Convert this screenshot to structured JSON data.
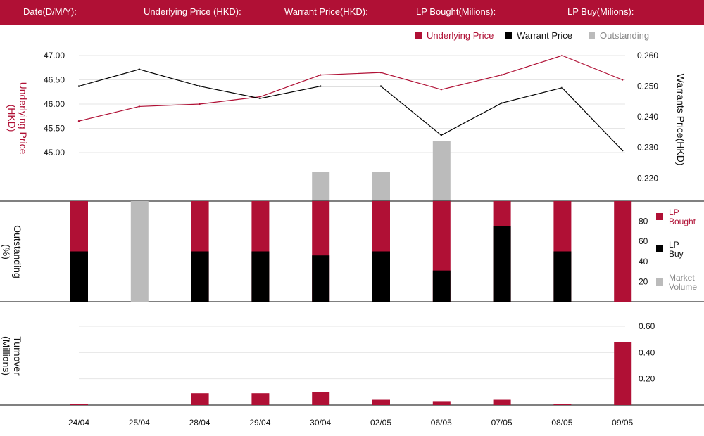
{
  "header": {
    "date_label": "Date(D/M/Y):",
    "underlying_label": "Underlying Price (HKD):",
    "warrant_label": "Warrant  Price(HKD):",
    "lp_bought_label": "LP Bought(Milions):",
    "lp_buy_label": "LP Buy(Milions):"
  },
  "colors": {
    "crimson": "#b01035",
    "black": "#000000",
    "grey": "#bbbbbb"
  },
  "legend_top": [
    "Underlying Price",
    "Warrant  Price",
    "Outstanding"
  ],
  "legend_right": [
    {
      "line1": "LP",
      "line2": "Bought"
    },
    {
      "line1": "LP",
      "line2": "Buy"
    },
    {
      "line1": "Market",
      "line2": "Volume"
    }
  ],
  "chart_data": {
    "dates": [
      "24/04",
      "25/04",
      "28/04",
      "29/04",
      "30/04",
      "02/05",
      "06/05",
      "07/05",
      "08/05",
      "09/05"
    ],
    "price_panel": {
      "type": "line",
      "ylabel_left": [
        "Underlying Price",
        "(HKD)"
      ],
      "ylabel_right": "Warrants  Price(HKD)",
      "left_ticks": [
        "47.00",
        "46.50",
        "46.00",
        "45.50",
        "45.00"
      ],
      "right_ticks": [
        "0.260",
        "0.250",
        "0.240",
        "0.230",
        "0.220"
      ],
      "left_range": [
        44.0,
        47.0
      ],
      "right_range": [
        0.2125,
        0.26
      ],
      "underlying_price": [
        45.65,
        45.95,
        46.0,
        46.15,
        46.6,
        46.65,
        46.3,
        46.6,
        47.0,
        46.5
      ],
      "warrant_price": [
        0.25,
        0.2555,
        0.25,
        0.246,
        0.25,
        0.25,
        0.234,
        0.2445,
        0.2495,
        0.229
      ],
      "outstanding_pct": [
        0,
        0,
        0,
        0,
        48,
        48,
        100,
        0,
        0,
        0
      ],
      "outstanding_note": "grey bars (upper panel) on a 0–100% scale"
    },
    "outstanding_panel": {
      "type": "bar",
      "ylabel": [
        "Outstanding",
        "(%)"
      ],
      "ticks": [
        "80",
        "60",
        "40",
        "20"
      ],
      "range": [
        0,
        100
      ],
      "lp_bought_pct": [
        100,
        0,
        100,
        100,
        100,
        100,
        100,
        100,
        100,
        100
      ],
      "lp_buy_pct": [
        50,
        0,
        50,
        50,
        46,
        50,
        31,
        75,
        50,
        0
      ],
      "market_volume_pct": [
        0,
        100,
        0,
        0,
        0,
        0,
        0,
        0,
        0,
        0
      ]
    },
    "turnover_panel": {
      "type": "bar",
      "ylabel": [
        "Turnover",
        "(Millions)"
      ],
      "ticks": [
        "0.60",
        "0.40",
        "0.20"
      ],
      "range": [
        0,
        0.6
      ],
      "values": [
        0.01,
        0,
        0.09,
        0.09,
        0.1,
        0.04,
        0.03,
        0.04,
        0.01,
        0.48
      ]
    }
  }
}
